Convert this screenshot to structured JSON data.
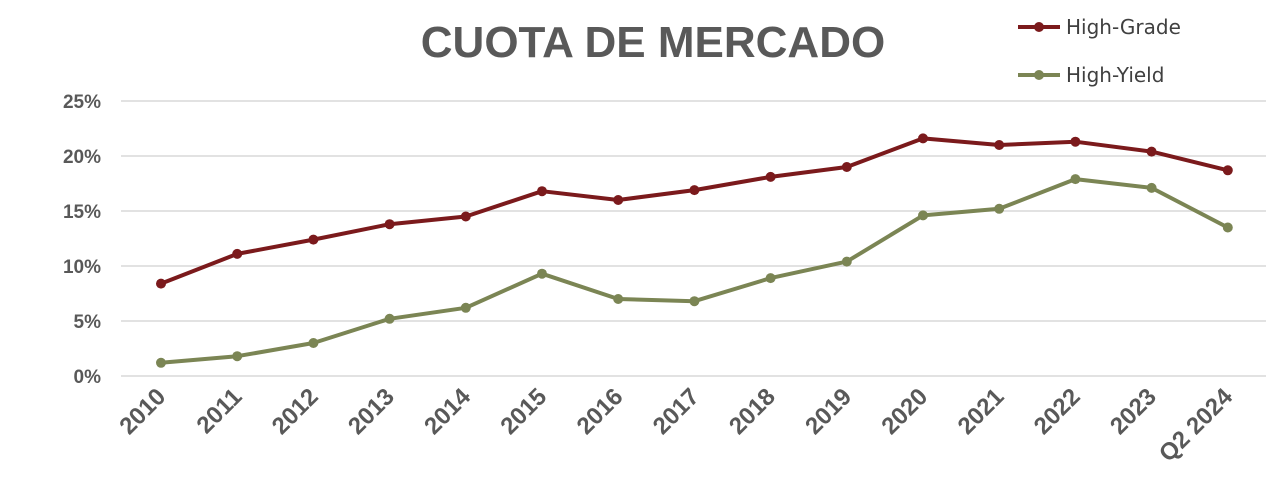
{
  "chart_data": {
    "type": "line",
    "title": "CUOTA DE MERCADO",
    "xlabel": "",
    "ylabel": "",
    "categories": [
      "2010",
      "2011",
      "2012",
      "2013",
      "2014",
      "2015",
      "2016",
      "2017",
      "2018",
      "2019",
      "2020",
      "2021",
      "2022",
      "2023",
      "Q2 2024"
    ],
    "ylim": [
      0,
      25
    ],
    "yticks": [
      0,
      5,
      10,
      15,
      20,
      25
    ],
    "ytick_labels": [
      "0%",
      "5%",
      "10%",
      "15%",
      "20%",
      "25%"
    ],
    "grid": true,
    "legend_position": "top-right",
    "series": [
      {
        "name": "High-Grade",
        "color": "#7b1a1c",
        "values": [
          8.4,
          11.1,
          12.4,
          13.8,
          14.5,
          16.8,
          16.0,
          16.9,
          18.1,
          19.0,
          21.6,
          21.0,
          21.3,
          20.4,
          18.7
        ]
      },
      {
        "name": "High-Yield",
        "color": "#7b8554",
        "values": [
          1.2,
          1.8,
          3.0,
          5.2,
          6.2,
          9.3,
          7.0,
          6.8,
          8.9,
          10.4,
          14.6,
          15.2,
          17.9,
          17.1,
          13.5
        ]
      }
    ]
  }
}
